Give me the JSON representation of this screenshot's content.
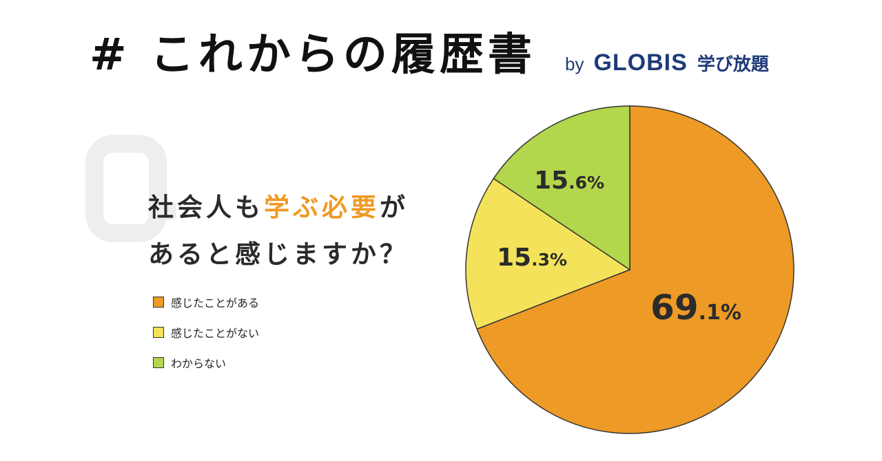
{
  "header": {
    "hash": "#",
    "title": "これからの履歴書",
    "by": "by",
    "brand": "GLOBIS",
    "service": "学び放題"
  },
  "question": {
    "line1_pre": "社会人も",
    "line1_highlight": "学ぶ必要",
    "line1_post": "が",
    "line2": "あると感じますか？"
  },
  "colors": {
    "highlight": "#ef9a24",
    "brand": "#1e3a78"
  },
  "chart_data": {
    "type": "pie",
    "start": "12 o'clock, clockwise",
    "slices": [
      {
        "label": "感じたことがある",
        "value": 69.1,
        "int": "69",
        "dec": ".1%",
        "color": "#ee9a26"
      },
      {
        "label": "感じたことがない",
        "value": 15.3,
        "int": "15",
        "dec": ".3%",
        "color": "#f4e35a"
      },
      {
        "label": "わからない",
        "value": 15.6,
        "int": "15",
        "dec": ".6%",
        "color": "#b2d64c"
      }
    ]
  }
}
